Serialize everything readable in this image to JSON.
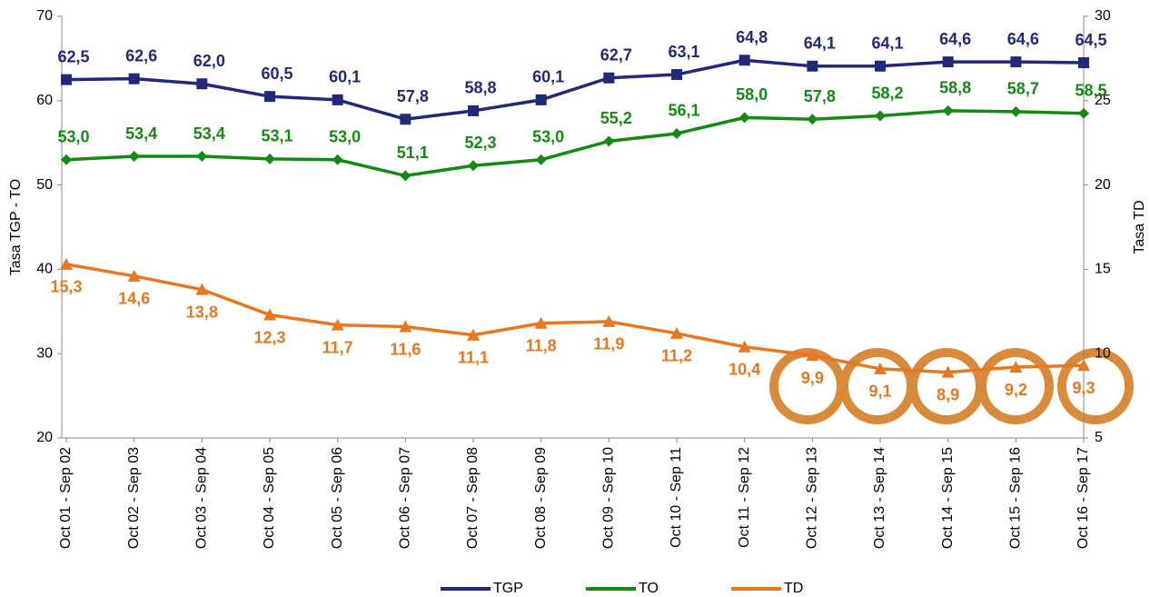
{
  "chart_data": {
    "type": "line",
    "categories": [
      "Oct 01 - Sep 02",
      "Oct 02 - Sep 03",
      "Oct 03 - Sep 04",
      "Oct 04 - Sep 05",
      "Oct 05 - Sep 06",
      "Oct 06 - Sep 07",
      "Oct 07 - Sep 08",
      "Oct 08 - Sep 09",
      "Oct 09 - Sep 10",
      "Oct 10 - Sep 11",
      "Oct 11 - Sep 12",
      "Oct 12 - Sep 13",
      "Oct 13 - Sep 14",
      "Oct 14 - Sep 15",
      "Oct 15 - Sep 16",
      "Oct 16 - Sep 17"
    ],
    "series": [
      {
        "name": "TGP",
        "color": "#1f2a7a",
        "marker": "square",
        "values": [
          62.5,
          62.6,
          62.0,
          60.5,
          60.1,
          57.8,
          58.8,
          60.1,
          62.7,
          63.1,
          64.8,
          64.1,
          64.1,
          64.6,
          64.6,
          64.5
        ],
        "value_labels": [
          "62,5",
          "62,6",
          "62,0",
          "60,5",
          "60,1",
          "57,8",
          "58,8",
          "60,1",
          "62,7",
          "63,1",
          "64,8",
          "64,1",
          "64,1",
          "64,6",
          "64,6",
          "64,5"
        ]
      },
      {
        "name": "TO",
        "color": "#138a12",
        "marker": "diamond",
        "values": [
          53.0,
          53.4,
          53.4,
          53.1,
          53.0,
          51.1,
          52.3,
          53.0,
          55.2,
          56.1,
          58.0,
          57.8,
          58.2,
          58.8,
          58.7,
          58.5
        ],
        "value_labels": [
          "53,0",
          "53,4",
          "53,4",
          "53,1",
          "53,0",
          "51,1",
          "52,3",
          "53,0",
          "55,2",
          "56,1",
          "58,0",
          "57,8",
          "58,2",
          "58,8",
          "58,7",
          "58,5"
        ]
      },
      {
        "name": "TD",
        "color": "#e8771e",
        "marker": "triangle",
        "axis": "y2",
        "values": [
          15.3,
          14.6,
          13.8,
          12.3,
          11.7,
          11.6,
          11.1,
          11.8,
          11.9,
          11.2,
          10.4,
          9.9,
          9.1,
          8.9,
          9.2,
          9.3
        ],
        "value_labels": [
          "15,3",
          "14,6",
          "13,8",
          "12,3",
          "11,7",
          "11,6",
          "11,1",
          "11,8",
          "11,9",
          "11,2",
          "10,4",
          "9,9",
          "9,1",
          "8,9",
          "9,2",
          "9,3"
        ]
      }
    ],
    "ylabel": "Tasa TGP - TO",
    "y2label": "Tasa TD",
    "ylim": [
      20,
      70
    ],
    "yticks": [
      20,
      30,
      40,
      50,
      60,
      70
    ],
    "y2lim": [
      5,
      30
    ],
    "y2ticks": [
      5,
      10,
      15,
      20,
      25,
      30
    ],
    "grid": false,
    "legend": "bottom"
  }
}
